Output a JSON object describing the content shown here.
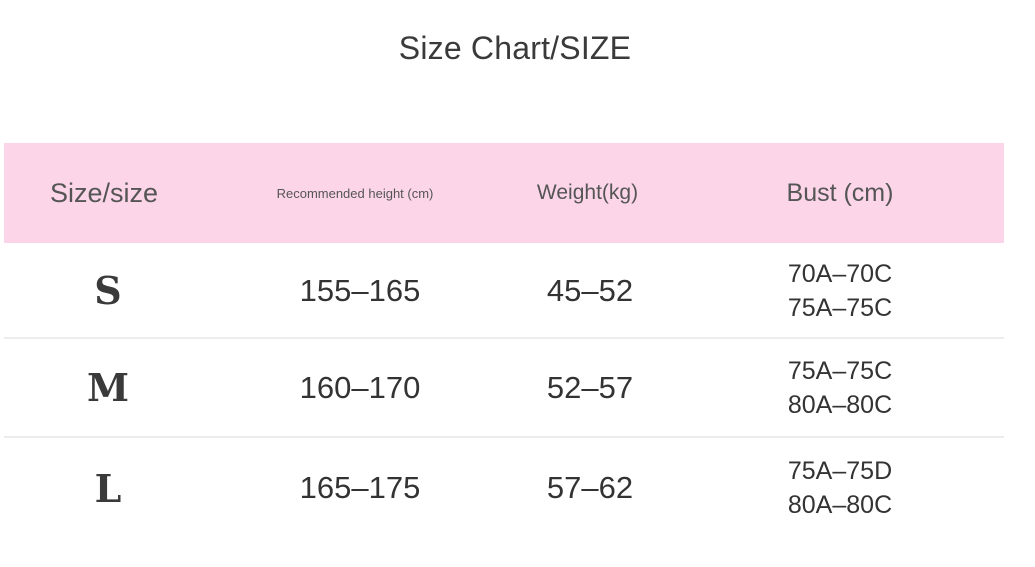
{
  "title": "Size Chart/SIZE",
  "table": {
    "headers": {
      "size": "Size/size",
      "height": "Recommended height (cm)",
      "weight": "Weight(kg)",
      "bust": "Bust (cm)"
    },
    "rows": [
      {
        "size": "S",
        "height": "155–165",
        "weight": "45–52",
        "bust": [
          "70A–70C",
          "75A–75C"
        ]
      },
      {
        "size": "M",
        "height": "160–170",
        "weight": "52–57",
        "bust": [
          "75A–75C",
          "80A–80C"
        ]
      },
      {
        "size": "L",
        "height": "165–175",
        "weight": "57–62",
        "bust": [
          "75A–75D",
          "80A–80C"
        ]
      }
    ]
  },
  "colors": {
    "header_background": "#fcd6e8",
    "text": "#333333",
    "divider": "#ececec"
  }
}
